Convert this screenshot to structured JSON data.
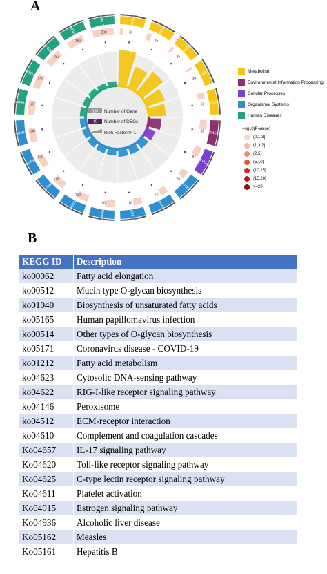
{
  "panel_a_label": "A",
  "panel_b_label": "B",
  "chart_data": {
    "type": "circos",
    "title": "",
    "categories": [
      "Metabolism",
      "Environmental Information Processing",
      "Cellular Processes",
      "Organismal Systems",
      "Human Diseases"
    ],
    "category_colors": {
      "Metabolism": "#f5c518",
      "Environmental Information Processing": "#8b2f6e",
      "Cellular Processes": "#7b3fd1",
      "Organismal Systems": "#2d8fd0",
      "Human Diseases": "#22a283"
    },
    "center_legend": {
      "gene": "Number of Gene",
      "gene_value": "100",
      "degs": "Number of DEGs",
      "degs_value": "10",
      "rich": "Rich Factor(0~1)"
    },
    "pvalue_legend_title": "-log10(P-value)",
    "pvalue_legend": [
      "(0,1,3]",
      "(1,3,2]",
      "(2,5]",
      "(5,10]",
      "(10,15]",
      "(15,20]",
      ">=20"
    ],
    "pvalue_colors": [
      "#f7d7c8",
      "#f4b9a3",
      "#ee8c74",
      "#e4573f",
      "#d42a22",
      "#b91915",
      "#8a0f0f"
    ],
    "terms": [
      {
        "id": "ko00062",
        "category": "Metabolism",
        "rich": 0.55,
        "genes": 30
      },
      {
        "id": "ko00512",
        "category": "Metabolism",
        "rich": 0.33,
        "genes": 45
      },
      {
        "id": "ko01040",
        "category": "Metabolism",
        "rich": 0.4,
        "genes": 25
      },
      {
        "id": "ko00514",
        "category": "Metabolism",
        "rich": 0.28,
        "genes": 20
      },
      {
        "id": "ko01212",
        "category": "Metabolism",
        "rich": 0.25,
        "genes": 60
      },
      {
        "id": "ko04512",
        "category": "Environmental Information Processing",
        "rich": 0.18,
        "genes": 88
      },
      {
        "id": "ko04146",
        "category": "Cellular Processes",
        "rich": 0.12,
        "genes": 87
      },
      {
        "id": "ko04623",
        "category": "Organismal Systems",
        "rich": 0.1,
        "genes": 70
      },
      {
        "id": "ko04622",
        "category": "Organismal Systems",
        "rich": 0.1,
        "genes": 70
      },
      {
        "id": "ko04610",
        "category": "Organismal Systems",
        "rich": 0.1,
        "genes": 80
      },
      {
        "id": "ko04657",
        "category": "Organismal Systems",
        "rich": 0.08,
        "genes": 90
      },
      {
        "id": "ko04620",
        "category": "Organismal Systems",
        "rich": 0.08,
        "genes": 110
      },
      {
        "id": "ko04625",
        "category": "Organismal Systems",
        "rich": 0.08,
        "genes": 113
      },
      {
        "id": "ko04611",
        "category": "Organismal Systems",
        "rich": 0.07,
        "genes": 120
      },
      {
        "id": "ko04915",
        "category": "Organismal Systems",
        "rich": 0.07,
        "genes": 130
      },
      {
        "id": "ko04936",
        "category": "Human Diseases",
        "rich": 0.07,
        "genes": 137
      },
      {
        "id": "ko05162",
        "category": "Human Diseases",
        "rich": 0.06,
        "genes": 140
      },
      {
        "id": "ko05161",
        "category": "Human Diseases",
        "rich": 0.06,
        "genes": 152
      },
      {
        "id": "ko05165",
        "category": "Human Diseases",
        "rich": 0.05,
        "genes": 161
      },
      {
        "id": "ko05171",
        "category": "Human Diseases",
        "rich": 0.05,
        "genes": 200
      }
    ]
  },
  "table": {
    "headers": [
      "KEGG ID",
      "Description"
    ],
    "rows": [
      [
        "ko00062",
        "Fatty acid elongation"
      ],
      [
        "ko00512",
        "Mucin type O-glycan biosynthesis"
      ],
      [
        "ko01040",
        "Biosynthesis of unsaturated fatty acids"
      ],
      [
        "ko05165",
        "Human papillomavirus infection"
      ],
      [
        "ko00514",
        "Other types of O-glycan biosynthesis"
      ],
      [
        "ko05171",
        "Coronavirus disease - COVID-19"
      ],
      [
        "ko01212",
        "Fatty acid metabolism"
      ],
      [
        "ko04623",
        "Cytosolic DNA-sensing pathway"
      ],
      [
        "ko04622",
        "RIG-I-like receptor signaling pathway"
      ],
      [
        "ko04146",
        "Peroxisome"
      ],
      [
        "ko04512",
        "ECM-receptor interaction"
      ],
      [
        "ko04610",
        "Complement and coagulation cascades"
      ],
      [
        "Ko04657",
        "IL-17 signaling pathway"
      ],
      [
        "Ko04620",
        "Toll-like receptor signaling pathway"
      ],
      [
        "Ko04625",
        "C-type lectin receptor signaling pathway"
      ],
      [
        "Ko04611",
        "Platelet activation"
      ],
      [
        "Ko04915",
        "Estrogen signaling pathway"
      ],
      [
        "Ko04936",
        "Alcoholic liver disease"
      ],
      [
        "Ko05162",
        "Measles"
      ],
      [
        "Ko05161",
        "Hepatitis B"
      ]
    ]
  }
}
